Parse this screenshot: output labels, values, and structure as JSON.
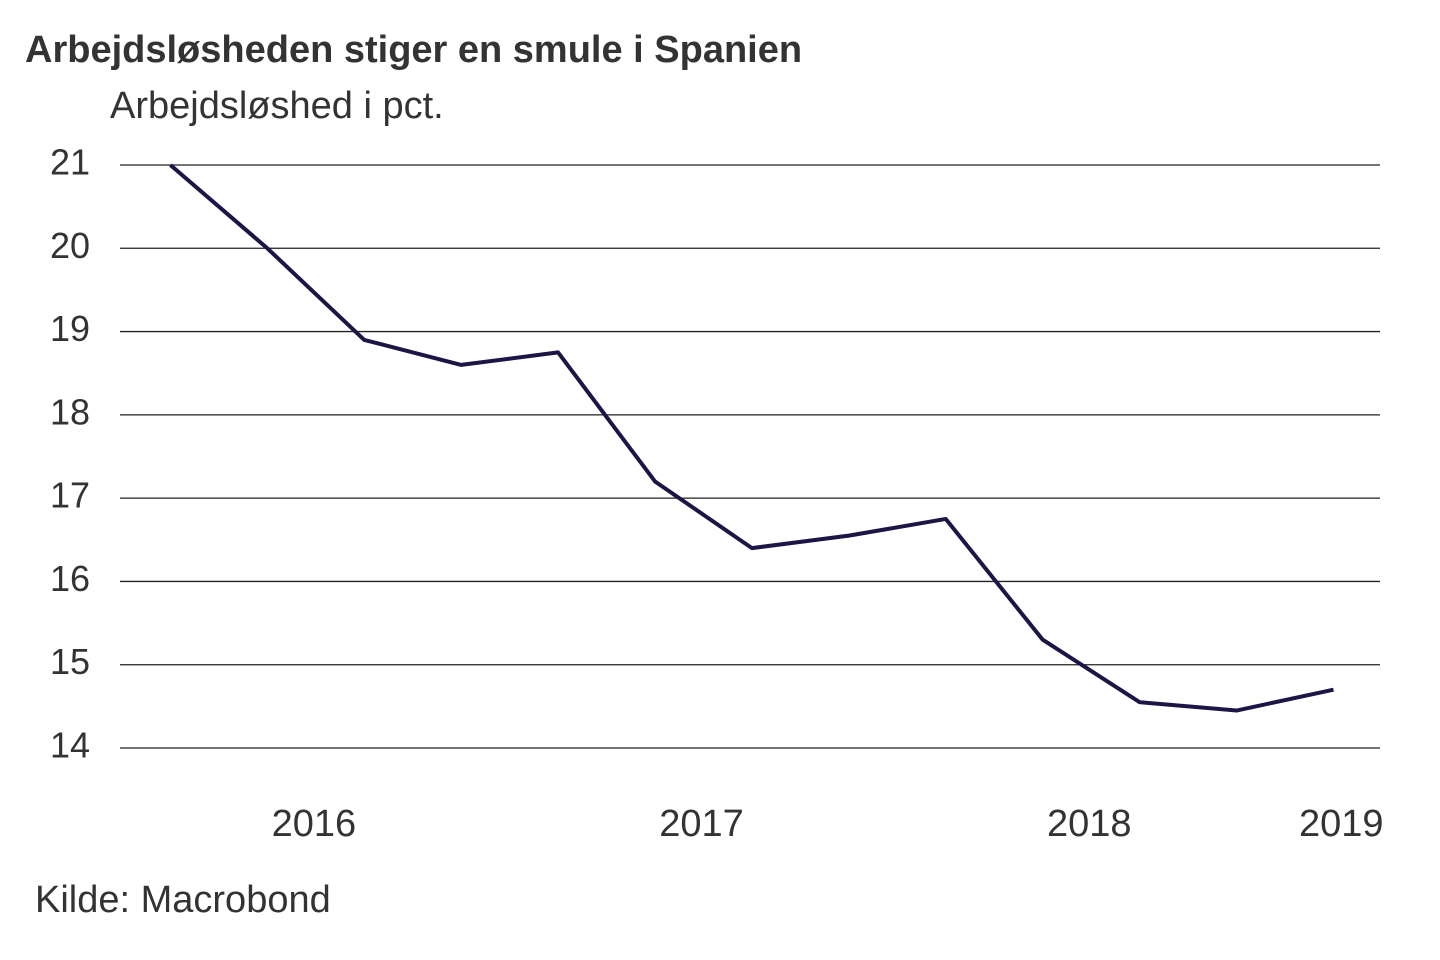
{
  "chart_data": {
    "type": "line",
    "title": "Arbejdsløsheden stiger en smule i Spanien",
    "subtitle": "Arbejdsløshed i pct.",
    "source": "Kilde: Macrobond",
    "x": [
      2015.75,
      2016.0,
      2016.25,
      2016.5,
      2016.75,
      2017.0,
      2017.25,
      2017.5,
      2017.75,
      2018.0,
      2018.25,
      2018.5,
      2018.75
    ],
    "series": [
      {
        "name": "Arbejdsløshed",
        "color": "#1e1446",
        "values": [
          21.0,
          20.0,
          18.9,
          18.6,
          18.75,
          17.2,
          16.4,
          16.55,
          16.75,
          15.3,
          14.55,
          14.45,
          14.7
        ]
      }
    ],
    "xlim": [
      2015.62,
      2018.87
    ],
    "xticks": [
      {
        "value": 2016.12,
        "label": "2016"
      },
      {
        "value": 2017.12,
        "label": "2017"
      },
      {
        "value": 2018.12,
        "label": "2018"
      },
      {
        "value": 2018.77,
        "label": "2019"
      }
    ],
    "ylim": [
      14,
      21
    ],
    "yticks": [
      14,
      15,
      16,
      17,
      18,
      19,
      20,
      21
    ],
    "grid": true
  }
}
